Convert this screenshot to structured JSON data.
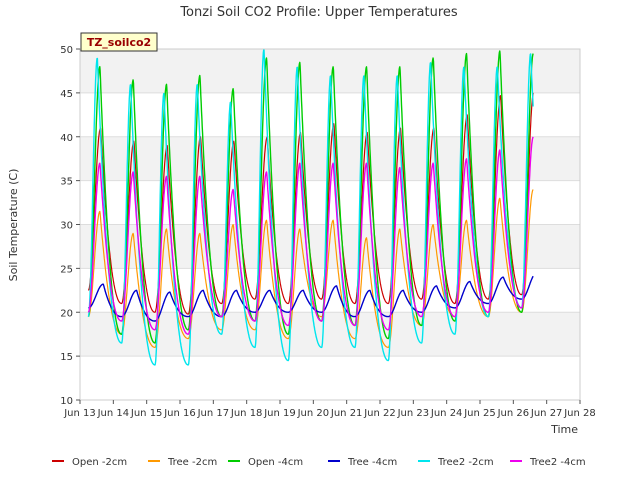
{
  "chart_data": {
    "type": "line",
    "title": "Tonzi Soil CO2 Profile: Upper Temperatures",
    "site_label": "TZ_soilco2",
    "xlabel": "Time",
    "ylabel": "Soil Temperature (C)",
    "ylim": [
      10,
      50
    ],
    "yticks": [
      10,
      15,
      20,
      25,
      30,
      35,
      40,
      45,
      50
    ],
    "xlim": [
      13,
      28
    ],
    "xticks": [
      {
        "v": 13,
        "label": "Jun 13"
      },
      {
        "v": 14,
        "label": "Jun 14"
      },
      {
        "v": 15,
        "label": "Jun 15"
      },
      {
        "v": 16,
        "label": "Jun 16"
      },
      {
        "v": 17,
        "label": "Jun 17"
      },
      {
        "v": 18,
        "label": "Jun 18"
      },
      {
        "v": 19,
        "label": "Jun 19"
      },
      {
        "v": 20,
        "label": "Jun 20"
      },
      {
        "v": 21,
        "label": "Jun 21"
      },
      {
        "v": 22,
        "label": "Jun 22"
      },
      {
        "v": 23,
        "label": "Jun 23"
      },
      {
        "v": 24,
        "label": "Jun 24"
      },
      {
        "v": 25,
        "label": "Jun 25"
      },
      {
        "v": 26,
        "label": "Jun 26"
      },
      {
        "v": 27,
        "label": "Jun 27"
      },
      {
        "v": 28,
        "label": "Jun 28"
      }
    ],
    "grid": true,
    "legend_position": "bottom",
    "days": [
      13,
      14,
      15,
      16,
      17,
      18,
      19,
      20,
      21,
      22,
      23,
      24,
      25,
      26
    ],
    "series": [
      {
        "name": "Open -2cm",
        "color": "#cc0000",
        "start": 13.25,
        "end": 26.6,
        "peak_frac": 0.62,
        "width": 1.2,
        "mins": [
          22.5,
          21.0,
          20.0,
          19.8,
          21.0,
          21.5,
          21.0,
          21.5,
          21.0,
          21.0,
          21.5,
          21.0,
          21.5,
          22.0
        ],
        "maxs": [
          41.0,
          39.5,
          39.0,
          40.0,
          39.5,
          40.0,
          40.5,
          41.5,
          40.5,
          41.0,
          41.0,
          42.5,
          44.7,
          45.3
        ]
      },
      {
        "name": "Tree -2cm",
        "color": "#ff9900",
        "start": 13.25,
        "end": 26.6,
        "peak_frac": 0.6,
        "width": 1.2,
        "mins": [
          19.5,
          17.5,
          16.0,
          17.0,
          18.0,
          18.0,
          17.0,
          19.5,
          17.0,
          16.0,
          18.5,
          19.5,
          19.5,
          20.0
        ],
        "maxs": [
          31.5,
          29.0,
          29.5,
          29.0,
          30.0,
          30.5,
          29.5,
          30.5,
          28.5,
          29.5,
          30.0,
          30.5,
          33.0,
          34.0
        ]
      },
      {
        "name": "Open -4cm",
        "color": "#00cc00",
        "start": 13.25,
        "end": 26.6,
        "peak_frac": 0.6,
        "width": 1.4,
        "mins": [
          19.5,
          17.5,
          16.5,
          18.0,
          19.5,
          19.0,
          17.5,
          19.0,
          18.5,
          17.0,
          18.5,
          19.0,
          19.5,
          20.0
        ],
        "maxs": [
          48.0,
          46.5,
          46.0,
          47.0,
          45.5,
          49.0,
          48.5,
          48.0,
          48.0,
          48.0,
          49.0,
          49.5,
          49.8,
          49.5
        ]
      },
      {
        "name": "Tree -4cm",
        "color": "#0000cc",
        "start": 13.25,
        "end": 26.6,
        "peak_frac": 0.7,
        "width": 1.4,
        "mins": [
          20.5,
          19.5,
          19.0,
          19.5,
          19.5,
          20.0,
          20.0,
          20.0,
          19.5,
          19.5,
          20.0,
          20.5,
          21.0,
          21.5
        ],
        "maxs": [
          23.2,
          22.5,
          22.3,
          22.5,
          22.5,
          22.5,
          22.5,
          23.0,
          22.5,
          22.5,
          23.0,
          23.5,
          24.0,
          24.5
        ]
      },
      {
        "name": "Tree2 -2cm",
        "color": "#00e5ee",
        "start": 13.25,
        "end": 26.6,
        "peak_frac": 0.52,
        "width": 1.4,
        "mins": [
          19.5,
          16.5,
          14.0,
          14.0,
          17.5,
          16.0,
          14.5,
          16.0,
          16.0,
          14.5,
          16.5,
          17.5,
          19.5,
          20.5
        ],
        "maxs": [
          49.0,
          46.0,
          45.0,
          46.0,
          44.0,
          50.0,
          48.0,
          47.0,
          47.0,
          47.0,
          48.5,
          48.0,
          48.0,
          49.5
        ]
      },
      {
        "name": "Tree2 -4cm",
        "color": "#ee00ee",
        "start": 13.25,
        "end": 26.6,
        "peak_frac": 0.6,
        "width": 1.4,
        "mins": [
          20.0,
          19.0,
          18.0,
          17.5,
          19.5,
          19.0,
          18.5,
          19.0,
          18.5,
          18.0,
          19.5,
          19.5,
          20.0,
          20.5
        ],
        "maxs": [
          37.0,
          36.0,
          35.5,
          35.5,
          34.0,
          36.0,
          37.0,
          37.0,
          37.0,
          36.5,
          37.0,
          37.5,
          38.5,
          40.0
        ]
      }
    ]
  }
}
